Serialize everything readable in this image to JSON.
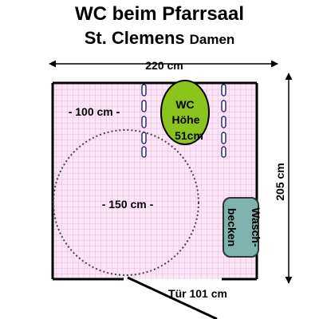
{
  "title": {
    "line1": "WC beim Pfarrsaal",
    "line2": "St. Clemens",
    "line2_suffix": "Damen"
  },
  "dimensions": {
    "width": "220 cm",
    "height": "205 cm",
    "clearance": "- 100 cm -",
    "turning_circle": "- 150 cm -",
    "door": "Tür 101 cm"
  },
  "fixtures": {
    "wc_line1": "WC",
    "wc_line2": "Höhe",
    "wc_line3": "51cm",
    "sink_line1": "Wasch-",
    "sink_line2": "becken"
  },
  "colors": {
    "floor": "#fbe6f5",
    "grid": "#e9a8dc",
    "wall": "#000000",
    "wc_fill": "#8ac41c",
    "sink_fill": "#7fb3ad",
    "grab_bar": "#2a2a8a",
    "arrow": "#000000"
  }
}
